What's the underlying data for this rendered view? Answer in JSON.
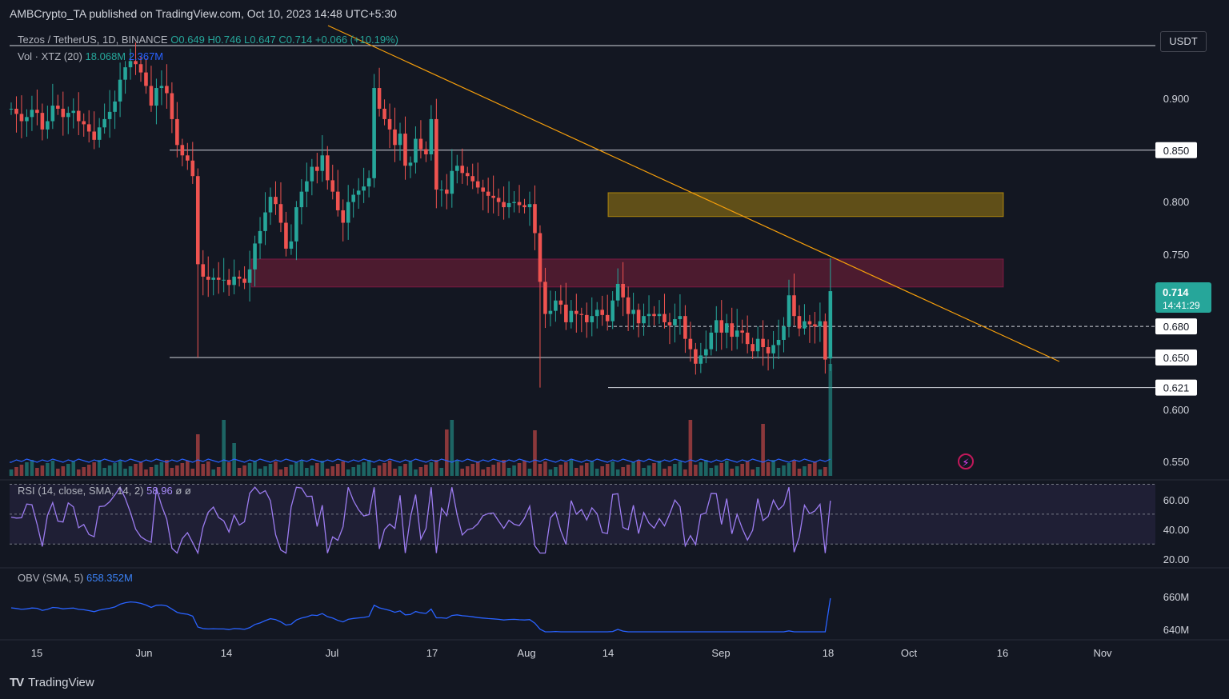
{
  "header": {
    "published": "AMBCrypto_TA published on TradingView.com, Oct 10, 2023 14:48 UTC+5:30",
    "symbol_line": "Tezos / TetherUS, 1D, BINANCE",
    "ohlc": "O0.649 H0.746 L0.647 C0.714 +0.066 (+10.19%)",
    "vol_label": "Vol · XTZ (20)",
    "vol_value": "18.068M",
    "vol_sma": "2.367M",
    "rsi_label": "RSI (14, close, SMA, 14, 2)",
    "rsi_value": "58.96",
    "rsi_extra": "ø ø",
    "obv_label": "OBV (SMA, 5)",
    "obv_value": "658.352M",
    "currency": "USDT",
    "brand": "TradingView",
    "brand_logo": "TV"
  },
  "colors": {
    "background": "#131722",
    "up": "#26a69a",
    "down": "#ef5350",
    "trendline": "#f59e0b",
    "rsi": "#9c7cf0",
    "obv": "#2962ff",
    "resistance_zone": "#f2b705",
    "supply_zone": "#7b1f3a"
  },
  "chart_data": {
    "type": "candlestick",
    "symbol": "Tezos / TetherUS",
    "timeframe": "1D",
    "exchange": "BINANCE",
    "last_price": "0.714",
    "countdown": "14:41:29",
    "price_axis": {
      "ticks": [
        "0.900",
        "0.800",
        "0.750",
        "0.600",
        "0.550"
      ],
      "range": [
        0.54,
        0.95
      ]
    },
    "levels": [
      {
        "label": "0.850",
        "value": 0.85,
        "style": "solid"
      },
      {
        "label": "0.680",
        "value": 0.68,
        "style": "dashed"
      },
      {
        "label": "0.650",
        "value": 0.65,
        "style": "solid"
      },
      {
        "label": "0.621",
        "value": 0.621,
        "style": "solid"
      }
    ],
    "zones": [
      {
        "name": "resistance",
        "from": 0.786,
        "to": 0.809
      },
      {
        "name": "supply",
        "from": 0.718,
        "to": 0.745
      }
    ],
    "trendline": {
      "from": [
        "May 29",
        0.96
      ],
      "to": [
        "Oct 24",
        0.652
      ]
    },
    "x_axis": {
      "labels": [
        "15",
        "Jun",
        "14",
        "Jul",
        "17",
        "Aug",
        "14",
        "Sep",
        "18",
        "Oct",
        "16",
        "Nov"
      ]
    },
    "rsi": {
      "ticks": [
        "60.00",
        "40.00",
        "20.00"
      ],
      "upper": 70,
      "middle": 50,
      "lower": 30,
      "last": 58.96
    },
    "obv": {
      "ticks": [
        "660M",
        "640M"
      ],
      "last": "658.352M"
    },
    "series": {
      "closes": [
        0.89,
        0.885,
        0.878,
        0.882,
        0.889,
        0.886,
        0.87,
        0.878,
        0.893,
        0.89,
        0.882,
        0.886,
        0.888,
        0.878,
        0.875,
        0.868,
        0.86,
        0.872,
        0.88,
        0.887,
        0.897,
        0.918,
        0.93,
        0.936,
        0.933,
        0.925,
        0.912,
        0.893,
        0.91,
        0.912,
        0.905,
        0.88,
        0.855,
        0.845,
        0.84,
        0.825,
        0.74,
        0.728,
        0.725,
        0.727,
        0.725,
        0.725,
        0.72,
        0.728,
        0.726,
        0.722,
        0.735,
        0.76,
        0.772,
        0.79,
        0.805,
        0.798,
        0.78,
        0.755,
        0.762,
        0.795,
        0.81,
        0.82,
        0.834,
        0.83,
        0.845,
        0.821,
        0.81,
        0.792,
        0.78,
        0.8,
        0.807,
        0.811,
        0.815,
        0.823,
        0.91,
        0.89,
        0.88,
        0.87,
        0.855,
        0.866,
        0.835,
        0.838,
        0.861,
        0.851,
        0.846,
        0.88,
        0.812,
        0.812,
        0.808,
        0.83,
        0.835,
        0.828,
        0.825,
        0.82,
        0.814,
        0.81,
        0.806,
        0.804,
        0.8,
        0.795,
        0.799,
        0.8,
        0.797,
        0.795,
        0.798,
        0.77,
        0.723,
        0.692,
        0.695,
        0.705,
        0.701,
        0.684,
        0.695,
        0.692,
        0.691,
        0.684,
        0.69,
        0.696,
        0.691,
        0.685,
        0.705,
        0.721,
        0.708,
        0.692,
        0.696,
        0.683,
        0.69,
        0.692,
        0.69,
        0.692,
        0.684,
        0.681,
        0.687,
        0.69,
        0.668,
        0.658,
        0.644,
        0.652,
        0.658,
        0.674,
        0.686,
        0.674,
        0.683,
        0.67,
        0.676,
        0.674,
        0.663,
        0.656,
        0.668,
        0.66,
        0.654,
        0.662,
        0.667,
        0.68,
        0.71,
        0.69,
        0.678,
        0.685,
        0.682,
        0.68,
        0.685,
        0.648,
        0.714
      ],
      "volume_note": "volume bars follow candle colors; spike on last bar"
    }
  }
}
